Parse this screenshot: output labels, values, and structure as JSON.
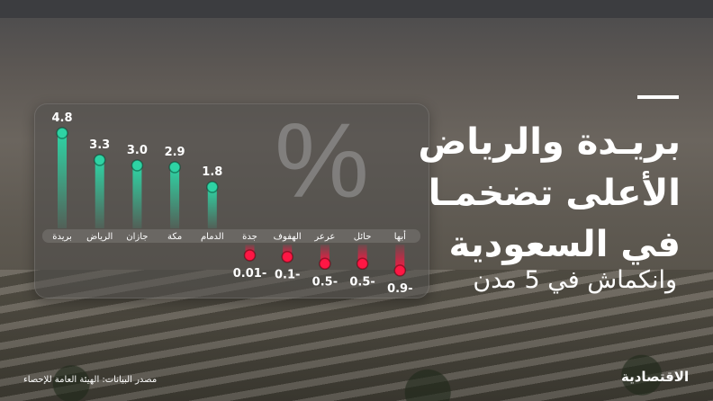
{
  "headline": {
    "lines": [
      "بريـدة والرياض",
      "الأعلى تضخمـا",
      "في السعودية"
    ],
    "subtitle": "وانكماش في 5 مدن"
  },
  "percent_symbol": "%",
  "source": "مصدر البيانات: الهيئة العامة للإحصاء",
  "logo": "الاقتصادية",
  "colors": {
    "positive": "#2ed3a4",
    "negative": "#ff1744",
    "text": "#ffffff"
  },
  "chart_data": {
    "type": "bar",
    "unit": "%",
    "categories": [
      "بريدة",
      "الرياض",
      "جازان",
      "مكة",
      "الدمام",
      "جدة",
      "الهفوف",
      "عرعر",
      "حائل",
      "أبها"
    ],
    "values": [
      4.8,
      3.3,
      3.0,
      2.9,
      1.8,
      -0.01,
      -0.1,
      -0.5,
      -0.5,
      -0.9
    ],
    "labels": [
      "4.8",
      "3.3",
      "3.0",
      "2.9",
      "1.8",
      "0.01-",
      "0.1-",
      "0.5-",
      "0.5-",
      "0.9-"
    ]
  }
}
